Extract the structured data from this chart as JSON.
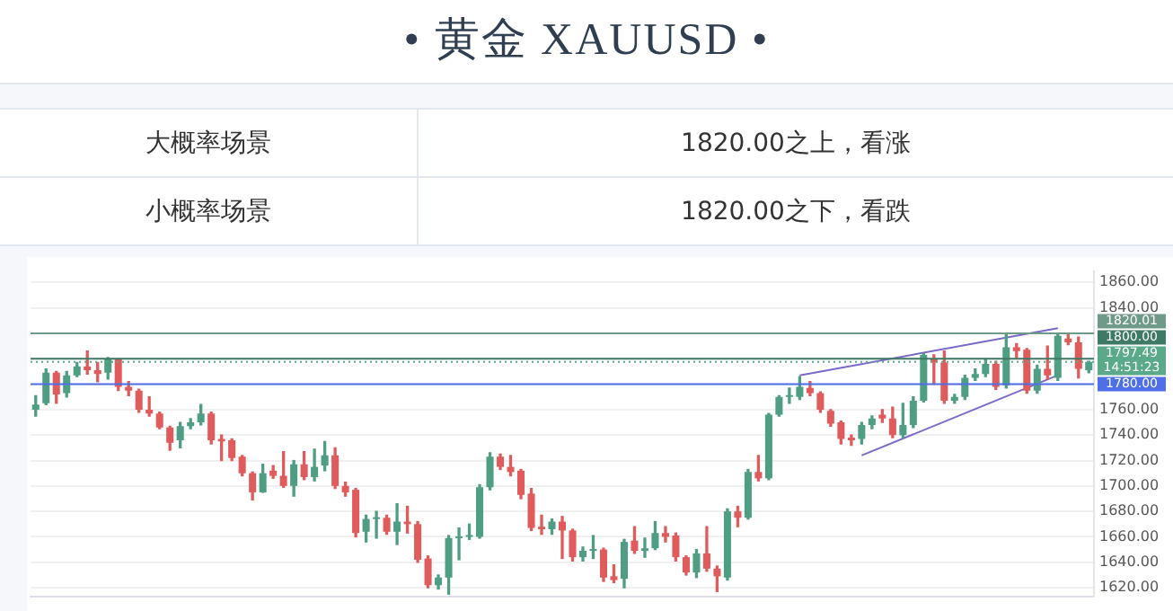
{
  "chart_data": [
    {
      "type": "other",
      "title": "• 黄金 XAUUSD •",
      "annotations": [
        "大概率场景",
        "1820.00之上，看涨",
        "小概率场景",
        "1820.00之下，看跌"
      ]
    },
    {
      "type": "candlestick",
      "categories": [
        null,
        null,
        null,
        null,
        null,
        null,
        null,
        null,
        null,
        null,
        null,
        null,
        null,
        null,
        null,
        null,
        null,
        null,
        null,
        null,
        null,
        null,
        null,
        null,
        null,
        null,
        null,
        null,
        null,
        null,
        null,
        null,
        null,
        null,
        null,
        null,
        null,
        null,
        null,
        null,
        null,
        null,
        null,
        null,
        null,
        null,
        null,
        null,
        null,
        null,
        null,
        null,
        null,
        null,
        null,
        null,
        null,
        null,
        null,
        null,
        null,
        null,
        null,
        null,
        null,
        null,
        null,
        null,
        null,
        null,
        null,
        null,
        null,
        null,
        null,
        null,
        null,
        null,
        null,
        null,
        null,
        null,
        null,
        null,
        null,
        null,
        null,
        null,
        null,
        null,
        null,
        null,
        null,
        null,
        null,
        null,
        null,
        null,
        null,
        null,
        null,
        null,
        null
      ],
      "ohlc": [
        [
          1760,
          1771,
          1755,
          1764
        ],
        [
          1765,
          1792,
          1764,
          1789
        ],
        [
          1789,
          1790,
          1765,
          1772
        ],
        [
          1773,
          1790,
          1770,
          1787
        ],
        [
          1787,
          1797,
          1786,
          1794
        ],
        [
          1794,
          1806,
          1788,
          1791
        ],
        [
          1791,
          1797,
          1782,
          1788
        ],
        [
          1789,
          1801,
          1784,
          1800
        ],
        [
          1800,
          1800,
          1775,
          1778
        ],
        [
          1778,
          1782,
          1771,
          1775
        ],
        [
          1775,
          1776,
          1758,
          1760
        ],
        [
          1760,
          1770,
          1755,
          1757
        ],
        [
          1757,
          1758,
          1745,
          1746
        ],
        [
          1746,
          1747,
          1728,
          1734
        ],
        [
          1736,
          1750,
          1730,
          1747
        ],
        [
          1747,
          1753,
          1745,
          1750
        ],
        [
          1750,
          1764,
          1748,
          1757
        ],
        [
          1757,
          1758,
          1733,
          1736
        ],
        [
          1737,
          1740,
          1720,
          1735
        ],
        [
          1736,
          1737,
          1720,
          1722
        ],
        [
          1723,
          1724,
          1708,
          1710
        ],
        [
          1710,
          1711,
          1689,
          1695
        ],
        [
          1695,
          1717,
          1695,
          1710
        ],
        [
          1712,
          1716,
          1706,
          1708
        ],
        [
          1708,
          1727,
          1699,
          1700
        ],
        [
          1700,
          1720,
          1692,
          1717
        ],
        [
          1717,
          1727,
          1705,
          1707
        ],
        [
          1707,
          1729,
          1704,
          1715
        ],
        [
          1716,
          1735,
          1712,
          1724
        ],
        [
          1724,
          1730,
          1698,
          1700
        ],
        [
          1700,
          1703,
          1692,
          1695
        ],
        [
          1697,
          1698,
          1660,
          1663
        ],
        [
          1664,
          1677,
          1656,
          1674
        ],
        [
          1674,
          1680,
          1659,
          1675
        ],
        [
          1675,
          1677,
          1662,
          1664
        ],
        [
          1664,
          1686,
          1654,
          1672
        ],
        [
          1672,
          1684,
          1663,
          1670
        ],
        [
          1670,
          1672,
          1640,
          1642
        ],
        [
          1643,
          1645,
          1620,
          1622
        ],
        [
          1622,
          1630,
          1619,
          1628
        ],
        [
          1628,
          1661,
          1615,
          1659
        ],
        [
          1659,
          1667,
          1642,
          1660
        ],
        [
          1660,
          1670,
          1658,
          1661
        ],
        [
          1660,
          1701,
          1659,
          1699
        ],
        [
          1699,
          1726,
          1697,
          1723
        ],
        [
          1723,
          1725,
          1713,
          1715
        ],
        [
          1715,
          1724,
          1708,
          1711
        ],
        [
          1712,
          1713,
          1690,
          1693
        ],
        [
          1694,
          1698,
          1665,
          1667
        ],
        [
          1668,
          1677,
          1662,
          1666
        ],
        [
          1666,
          1674,
          1662,
          1672
        ],
        [
          1672,
          1676,
          1643,
          1665
        ],
        [
          1665,
          1666,
          1641,
          1644
        ],
        [
          1644,
          1652,
          1641,
          1649
        ],
        [
          1649,
          1661,
          1643,
          1650
        ],
        [
          1650,
          1651,
          1625,
          1628
        ],
        [
          1629,
          1638,
          1624,
          1626
        ],
        [
          1627,
          1658,
          1620,
          1656
        ],
        [
          1657,
          1668,
          1647,
          1649
        ],
        [
          1649,
          1659,
          1644,
          1651
        ],
        [
          1651,
          1672,
          1650,
          1663
        ],
        [
          1663,
          1668,
          1656,
          1660
        ],
        [
          1661,
          1663,
          1641,
          1644
        ],
        [
          1644,
          1645,
          1630,
          1632
        ],
        [
          1632,
          1650,
          1628,
          1647
        ],
        [
          1647,
          1668,
          1633,
          1635
        ],
        [
          1635,
          1637,
          1617,
          1629
        ],
        [
          1628,
          1682,
          1626,
          1680
        ],
        [
          1680,
          1684,
          1668,
          1675
        ],
        [
          1675,
          1713,
          1674,
          1711
        ],
        [
          1711,
          1724,
          1704,
          1706
        ],
        [
          1706,
          1757,
          1705,
          1756
        ],
        [
          1756,
          1771,
          1755,
          1770
        ],
        [
          1770,
          1777,
          1765,
          1771
        ],
        [
          1770,
          1786,
          1768,
          1778
        ],
        [
          1777,
          1782,
          1771,
          1773
        ],
        [
          1773,
          1774,
          1758,
          1760
        ],
        [
          1759,
          1760,
          1747,
          1749
        ],
        [
          1750,
          1751,
          1733,
          1737
        ],
        [
          1738,
          1740,
          1732,
          1736
        ],
        [
          1737,
          1750,
          1733,
          1748
        ],
        [
          1748,
          1755,
          1745,
          1753
        ],
        [
          1756,
          1760,
          1750,
          1753
        ],
        [
          1753,
          1762,
          1738,
          1740
        ],
        [
          1740,
          1765,
          1738,
          1748
        ],
        [
          1748,
          1770,
          1746,
          1767
        ],
        [
          1767,
          1804,
          1766,
          1803
        ],
        [
          1800,
          1803,
          1780,
          1797
        ],
        [
          1797,
          1806,
          1765,
          1767
        ],
        [
          1767,
          1772,
          1765,
          1770
        ],
        [
          1770,
          1787,
          1768,
          1785
        ],
        [
          1785,
          1792,
          1783,
          1788
        ],
        [
          1788,
          1800,
          1786,
          1796
        ],
        [
          1796,
          1798,
          1776,
          1778
        ],
        [
          1779,
          1820,
          1777,
          1809
        ],
        [
          1809,
          1812,
          1800,
          1806
        ],
        [
          1807,
          1808,
          1773,
          1775
        ],
        [
          1775,
          1795,
          1773,
          1792
        ],
        [
          1792,
          1810,
          1784,
          1787
        ],
        [
          1785,
          1820,
          1783,
          1818
        ],
        [
          1816,
          1820,
          1811,
          1813
        ],
        [
          1813,
          1817,
          1785,
          1792
        ],
        [
          1791,
          1798,
          1789,
          1797.49
        ]
      ],
      "series": [
        {
          "type": "line",
          "color": "#7b68c8",
          "values": [
            null,
            null,
            null,
            null,
            null,
            null,
            null,
            null,
            null,
            null,
            null,
            null,
            null,
            null,
            null,
            null,
            null,
            null,
            null,
            null,
            null,
            null,
            null,
            null,
            null,
            null,
            null,
            null,
            null,
            null,
            null,
            null,
            null,
            null,
            null,
            null,
            null,
            null,
            null,
            null,
            null,
            null,
            null,
            null,
            null,
            null,
            null,
            null,
            null,
            null,
            null,
            null,
            null,
            null,
            null,
            null,
            null,
            null,
            null,
            null,
            null,
            null,
            null,
            null,
            null,
            null,
            null,
            null,
            null,
            null,
            null,
            null,
            null,
            null,
            1787,
            null,
            null,
            null,
            null,
            null,
            null,
            null,
            null,
            null,
            null,
            null,
            null,
            null,
            null,
            null,
            null,
            null,
            null,
            null,
            null,
            null,
            null,
            null,
            null,
            1824,
            null,
            null,
            null
          ]
        },
        {
          "type": "line",
          "color": "#7b68c8",
          "values": [
            null,
            null,
            null,
            null,
            null,
            null,
            null,
            null,
            null,
            null,
            null,
            null,
            null,
            null,
            null,
            null,
            null,
            null,
            null,
            null,
            null,
            null,
            null,
            null,
            null,
            null,
            null,
            null,
            null,
            null,
            null,
            null,
            null,
            null,
            null,
            null,
            null,
            null,
            null,
            null,
            null,
            null,
            null,
            null,
            null,
            null,
            null,
            null,
            null,
            null,
            null,
            null,
            null,
            null,
            null,
            null,
            null,
            null,
            null,
            null,
            null,
            null,
            null,
            null,
            null,
            null,
            null,
            null,
            null,
            null,
            null,
            null,
            null,
            null,
            null,
            null,
            null,
            null,
            null,
            null,
            1724,
            null,
            null,
            null,
            null,
            null,
            null,
            null,
            null,
            null,
            null,
            null,
            null,
            null,
            null,
            null,
            null,
            null,
            null,
            1787,
            null,
            null,
            null
          ]
        }
      ],
      "ylim": [
        1613,
        1869
      ],
      "yticks": [
        {
          "value": 1620,
          "label": "1620.00"
        },
        {
          "value": 1640,
          "label": "1640.00"
        },
        {
          "value": 1660,
          "label": "1660.00"
        },
        {
          "value": 1680,
          "label": "1680.00"
        },
        {
          "value": 1700,
          "label": "1700.00"
        },
        {
          "value": 1720,
          "label": "1720.00"
        },
        {
          "value": 1740,
          "label": "1740.00"
        },
        {
          "value": 1760,
          "label": "1760.00"
        },
        {
          "value": 1780,
          "label": null
        },
        {
          "value": 1800,
          "label": null
        },
        {
          "value": 1820,
          "label": null
        },
        {
          "value": 1840,
          "label": "1840.00"
        },
        {
          "value": 1860,
          "label": "1860.00"
        }
      ],
      "ref_lines": [
        {
          "axis": "y",
          "value": 1820.01,
          "label": "1820.01",
          "color": "#6f9a8a",
          "line_style": "solid"
        },
        {
          "axis": "y",
          "value": 1800,
          "label": "1800.00",
          "color": "#3f7a66",
          "line_style": "solid"
        },
        {
          "axis": "y",
          "value": 1797.49,
          "label": "1797.49",
          "color": "#5aaa8a",
          "line_style": "dotted"
        },
        {
          "axis": "y",
          "value": 1780,
          "label": "1780.00",
          "color": "#4f6fe8",
          "line_style": "solid"
        }
      ],
      "annotations": [
        "14:51:23"
      ],
      "grid": "y",
      "legend": false
    }
  ]
}
